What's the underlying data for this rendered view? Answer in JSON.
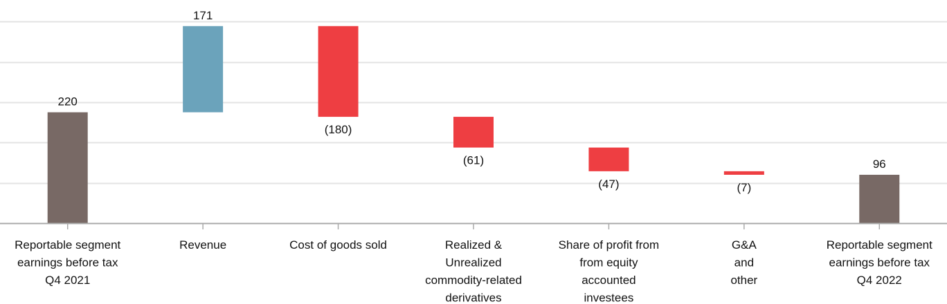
{
  "chart_data": {
    "type": "waterfall",
    "title": "",
    "xlabel": "",
    "ylabel": "",
    "ylim": [
      0,
      400
    ],
    "gridlines": [
      80,
      160,
      240,
      320,
      400
    ],
    "categories": [
      [
        "Reportable segment",
        "earnings before tax",
        "Q4 2021"
      ],
      [
        "Revenue"
      ],
      [
        "Cost of goods sold"
      ],
      [
        "Realized &",
        "Unrealized",
        "commodity-related",
        "derivatives"
      ],
      [
        "Share of profit from",
        "from equity",
        "accounted",
        "investees"
      ],
      [
        "G&A",
        "and",
        "other"
      ],
      [
        "Reportable segment",
        "earnings before tax",
        "Q4 2022"
      ]
    ],
    "values": [
      220,
      171,
      -180,
      -61,
      -47,
      -7,
      96
    ],
    "kinds": [
      "total",
      "increase",
      "decrease",
      "decrease",
      "decrease",
      "decrease",
      "total"
    ],
    "labels": [
      "220",
      "171",
      "(180)",
      "(61)",
      "(47)",
      "(7)",
      "96"
    ],
    "colors": {
      "total": "#786965",
      "increase": "#6ba3bb",
      "decrease": "#ee3e42",
      "grid": "#e3e3e3",
      "axis": "#aaaaaa"
    }
  }
}
